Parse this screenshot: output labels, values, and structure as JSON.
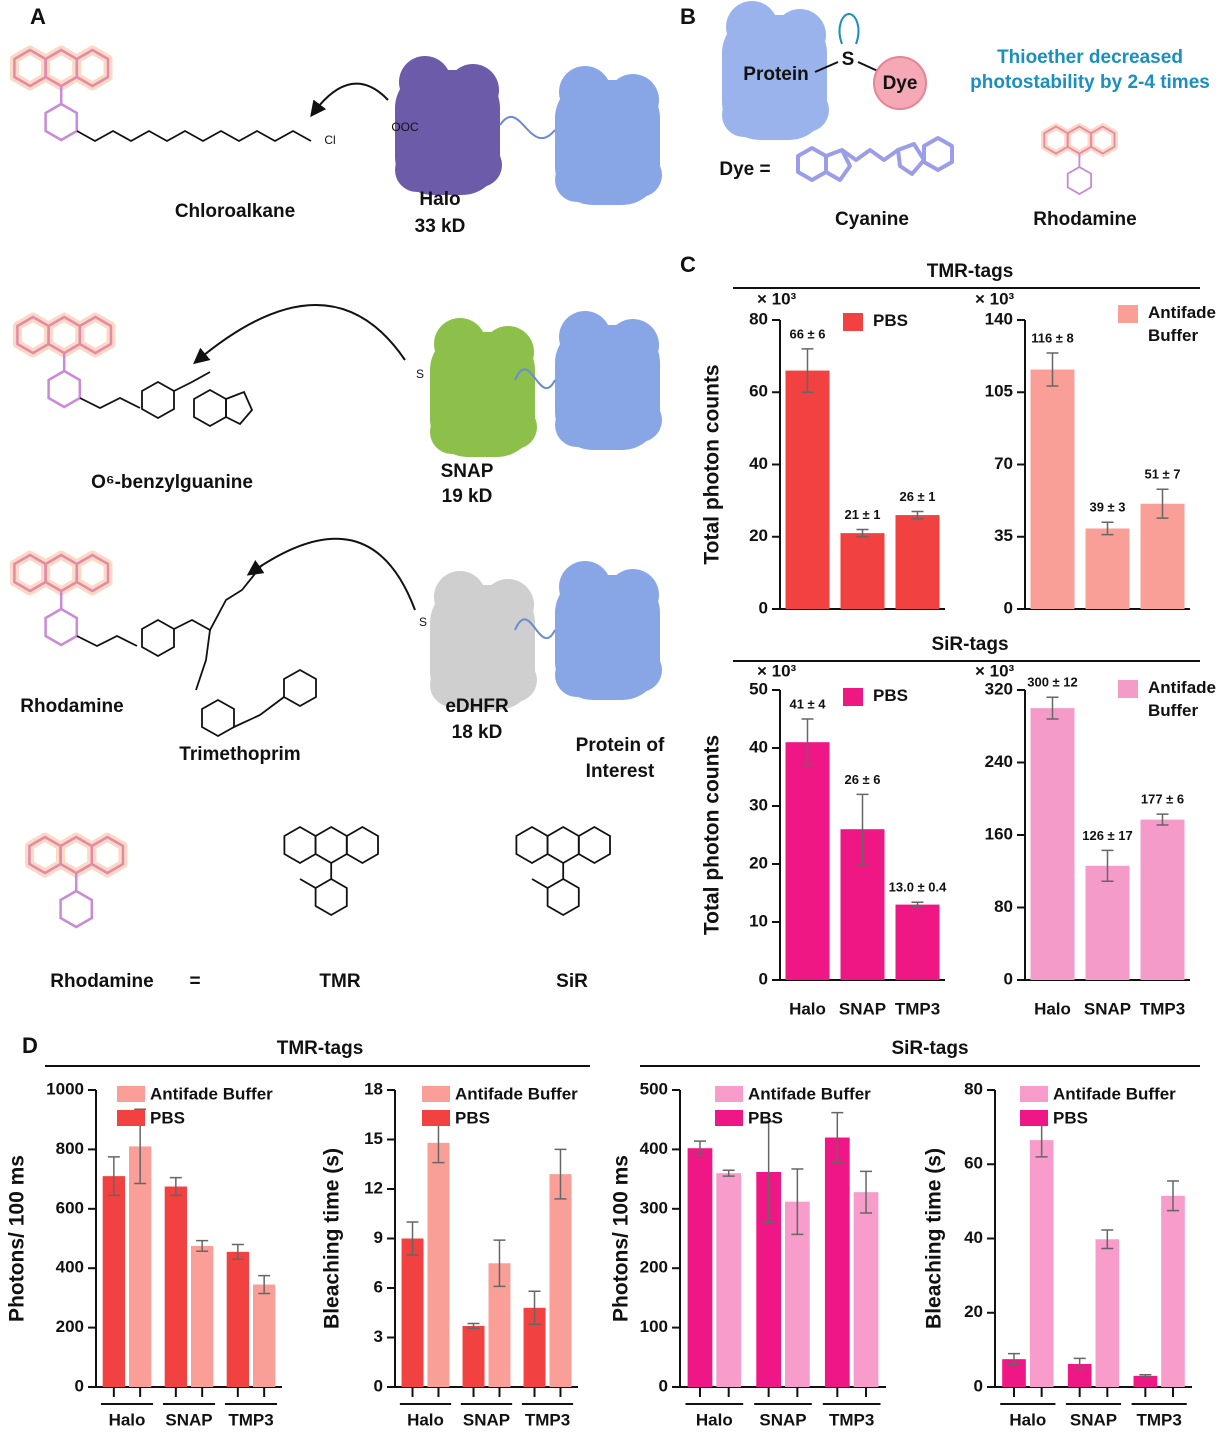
{
  "panel_labels": {
    "a": "A",
    "b": "B",
    "c": "C",
    "d": "D"
  },
  "panel_a": {
    "chloroalkane": "Chloroalkane",
    "halo": "Halo",
    "halo_size": "33 kD",
    "halo_site": "OOC",
    "chlorine": "Cl",
    "benzylguanine": "O⁶-benzylguanine",
    "snap": "SNAP",
    "snap_size": "19 kD",
    "snap_site": "S",
    "rhodamine": "Rhodamine",
    "trimethoprim": "Trimethoprim",
    "edhfr": "eDHFR",
    "edhfr_size": "18 kD",
    "edhfr_site": "S",
    "protein_of_interest": "Protein of Interest",
    "legend_rhodamine": "Rhodamine",
    "equals": "=",
    "tmr": "TMR",
    "sir": "SiR"
  },
  "panel_b": {
    "protein": "Protein",
    "sulfur": "S",
    "dye": "Dye",
    "dye_equals": "Dye =",
    "cyanine": "Cyanine",
    "rhodamine": "Rhodamine",
    "note": "Thioether decreased photostability by 2-4 times"
  },
  "panel_c": {
    "tmr_title": "TMR-tags",
    "sir_title": "SiR-tags"
  },
  "panel_d": {
    "tmr_title": "TMR-tags",
    "sir_title": "SiR-tags"
  },
  "chart_data": [
    {
      "type": "bar",
      "y_label": "Total photon counts",
      "y_multiplier": "× 10³",
      "ylim": [
        0,
        80
      ],
      "yticks": [
        0,
        20,
        40,
        60,
        80
      ],
      "series": [
        {
          "name": "PBS",
          "color": "#f24141",
          "values": [
            66,
            21,
            26
          ],
          "errors": [
            6,
            1,
            1
          ],
          "value_labels": [
            "66 ± 6",
            "21 ± 1",
            "26 ± 1"
          ]
        }
      ]
    },
    {
      "type": "bar",
      "y_multiplier": "× 10³",
      "ylim": [
        0,
        140
      ],
      "yticks": [
        0,
        35,
        70,
        105,
        140
      ],
      "series": [
        {
          "name": "Antifade Buffer",
          "color": "#fa9f98",
          "values": [
            116,
            39,
            51
          ],
          "errors": [
            8,
            3,
            7
          ],
          "value_labels": [
            "116 ± 8",
            "39 ± 3",
            "51 ± 7"
          ]
        }
      ]
    },
    {
      "type": "bar",
      "y_label": "Total photon counts",
      "y_multiplier": "× 10³",
      "categories": [
        "Halo",
        "SNAP",
        "TMP3"
      ],
      "ylim": [
        0,
        50
      ],
      "yticks": [
        0,
        10,
        20,
        30,
        40,
        50
      ],
      "series": [
        {
          "name": "PBS",
          "color": "#ee1784",
          "values": [
            41,
            26,
            13
          ],
          "errors": [
            4,
            6,
            0.4
          ],
          "value_labels": [
            "41 ± 4",
            "26 ± 6",
            "13.0 ± 0.4"
          ]
        }
      ]
    },
    {
      "type": "bar",
      "y_multiplier": "× 10³",
      "categories": [
        "Halo",
        "SNAP",
        "TMP3"
      ],
      "ylim": [
        0,
        320
      ],
      "yticks": [
        0,
        80,
        160,
        240,
        320
      ],
      "series": [
        {
          "name": "Antifade Buffer",
          "color": "#f59bc9",
          "values": [
            300,
            126,
            177
          ],
          "errors": [
            12,
            17,
            6
          ],
          "value_labels": [
            "300 ± 12",
            "126 ± 17",
            "177 ± 6"
          ]
        }
      ]
    },
    {
      "type": "bar",
      "y_label": "Photons/ 100 ms",
      "categories": [
        "Halo",
        "SNAP",
        "TMP3"
      ],
      "ylim": [
        0,
        1000
      ],
      "yticks": [
        0,
        200,
        400,
        600,
        800,
        1000
      ],
      "series": [
        {
          "name": "Antifade Buffer",
          "color": "#fa9f98",
          "values": [
            810,
            475,
            345
          ],
          "errors": [
            125,
            18,
            30
          ]
        },
        {
          "name": "PBS",
          "color": "#f24141",
          "values": [
            710,
            675,
            455
          ],
          "errors": [
            65,
            30,
            25
          ]
        }
      ]
    },
    {
      "type": "bar",
      "y_label": "Bleaching time (s)",
      "categories": [
        "Halo",
        "SNAP",
        "TMP3"
      ],
      "ylim": [
        0,
        18
      ],
      "yticks": [
        0,
        3,
        6,
        9,
        12,
        15,
        18
      ],
      "series": [
        {
          "name": "Antifade Buffer",
          "color": "#fa9f98",
          "values": [
            14.8,
            7.5,
            12.9
          ],
          "errors": [
            1.2,
            1.4,
            1.5
          ]
        },
        {
          "name": "PBS",
          "color": "#f24141",
          "values": [
            9,
            3.7,
            4.8
          ],
          "errors": [
            1,
            0.15,
            1
          ]
        }
      ]
    },
    {
      "type": "bar",
      "y_label": "Photons/ 100 ms",
      "categories": [
        "Halo",
        "SNAP",
        "TMP3"
      ],
      "ylim": [
        0,
        500
      ],
      "yticks": [
        0,
        100,
        200,
        300,
        400,
        500
      ],
      "series": [
        {
          "name": "Antifade Buffer",
          "color": "#f79ccb",
          "values": [
            360,
            312,
            328
          ],
          "errors": [
            5,
            55,
            35
          ]
        },
        {
          "name": "PBS",
          "color": "#ef1785",
          "values": [
            402,
            362,
            420
          ],
          "errors": [
            12,
            85,
            42
          ]
        }
      ]
    },
    {
      "type": "bar",
      "y_label": "Bleaching time (s)",
      "categories": [
        "Halo",
        "SNAP",
        "TMP3"
      ],
      "ylim": [
        0,
        80
      ],
      "yticks": [
        0,
        20,
        40,
        60,
        80
      ],
      "series": [
        {
          "name": "Antifade Buffer",
          "color": "#f79ccb",
          "values": [
            66.5,
            39.8,
            51.5
          ],
          "errors": [
            4.5,
            2.5,
            4
          ]
        },
        {
          "name": "PBS",
          "color": "#ef1785",
          "values": [
            7.5,
            6.2,
            3
          ],
          "errors": [
            1.5,
            1.5,
            0.3
          ]
        }
      ]
    }
  ]
}
